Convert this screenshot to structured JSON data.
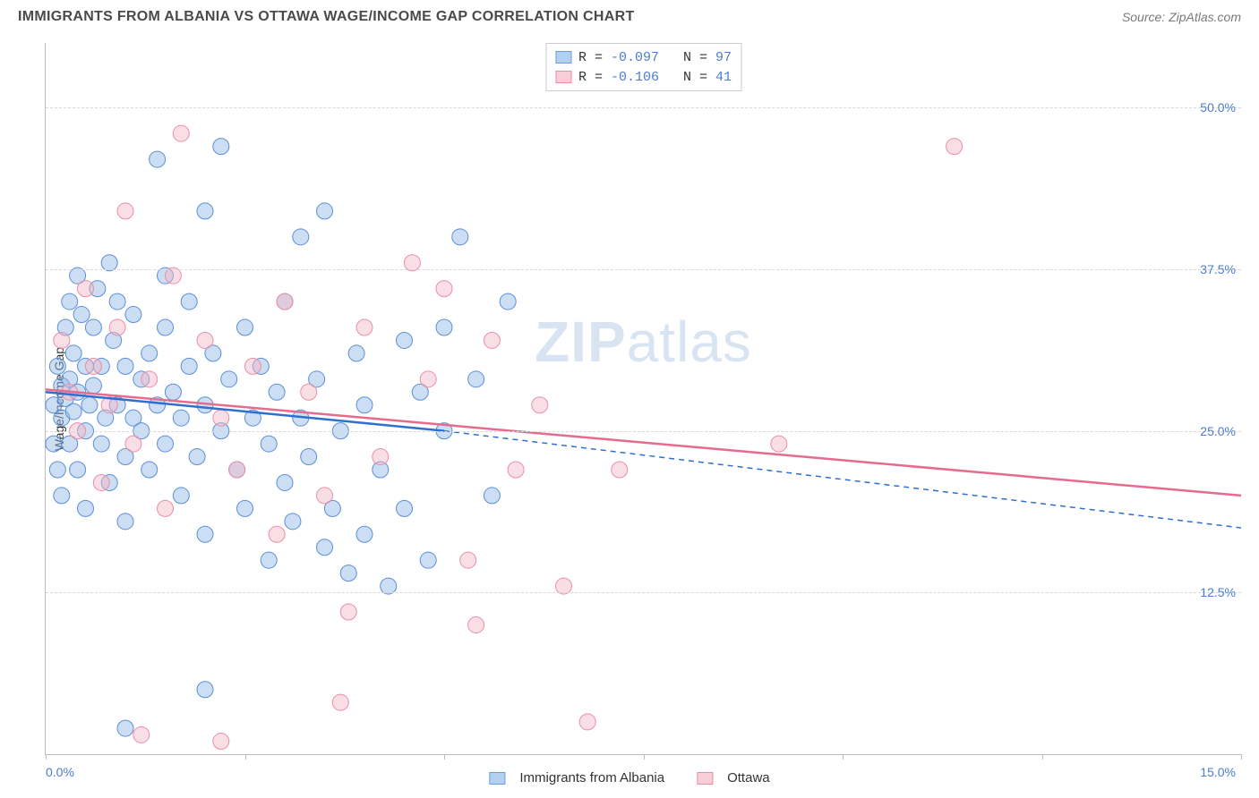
{
  "title": "IMMIGRANTS FROM ALBANIA VS OTTAWA WAGE/INCOME GAP CORRELATION CHART",
  "source": "Source: ZipAtlas.com",
  "ylabel": "Wage/Income Gap",
  "watermark": {
    "bold": "ZIP",
    "rest": "atlas"
  },
  "chart": {
    "type": "scatter",
    "xlim": [
      0,
      15
    ],
    "ylim": [
      0,
      55
    ],
    "x_ticks": [
      0,
      2.5,
      5,
      7.5,
      10,
      12.5,
      15
    ],
    "x_tick_labels": {
      "left": "0.0%",
      "right": "15.0%"
    },
    "y_gridlines": [
      12.5,
      25,
      37.5,
      50
    ],
    "y_tick_labels": [
      "12.5%",
      "25.0%",
      "37.5%",
      "50.0%"
    ],
    "grid_color": "#d8d8d8",
    "axis_color": "#bcbcbc",
    "background_color": "#ffffff",
    "tick_label_color": "#4b7bd6",
    "marker_radius": 9,
    "marker_opacity": 0.45,
    "series": [
      {
        "name": "Immigrants from Albania",
        "color": "#8fb6e5",
        "stroke": "#5c8fd6",
        "line_color": "#2f6fd0",
        "R": "-0.097",
        "N": "97",
        "trend": {
          "x1": 0,
          "y1": 28.0,
          "x2": 5.0,
          "y2": 25.0,
          "dash_to_x": 15.0,
          "dash_to_y": 17.5
        },
        "points": [
          [
            0.1,
            27
          ],
          [
            0.1,
            24
          ],
          [
            0.15,
            30
          ],
          [
            0.15,
            22
          ],
          [
            0.2,
            28.5
          ],
          [
            0.2,
            26
          ],
          [
            0.2,
            20
          ],
          [
            0.25,
            33
          ],
          [
            0.25,
            27.5
          ],
          [
            0.3,
            35
          ],
          [
            0.3,
            29
          ],
          [
            0.3,
            24
          ],
          [
            0.35,
            31
          ],
          [
            0.35,
            26.5
          ],
          [
            0.4,
            37
          ],
          [
            0.4,
            28
          ],
          [
            0.4,
            22
          ],
          [
            0.45,
            34
          ],
          [
            0.5,
            30
          ],
          [
            0.5,
            25
          ],
          [
            0.5,
            19
          ],
          [
            0.55,
            27
          ],
          [
            0.6,
            33
          ],
          [
            0.6,
            28.5
          ],
          [
            0.65,
            36
          ],
          [
            0.7,
            30
          ],
          [
            0.7,
            24
          ],
          [
            0.75,
            26
          ],
          [
            0.8,
            38
          ],
          [
            0.8,
            21
          ],
          [
            0.85,
            32
          ],
          [
            0.9,
            27
          ],
          [
            0.9,
            35
          ],
          [
            1.0,
            30
          ],
          [
            1.0,
            23
          ],
          [
            1.0,
            18
          ],
          [
            1.1,
            34
          ],
          [
            1.1,
            26
          ],
          [
            1.2,
            29
          ],
          [
            1.2,
            25
          ],
          [
            1.3,
            31
          ],
          [
            1.3,
            22
          ],
          [
            1.4,
            27
          ],
          [
            1.5,
            33
          ],
          [
            1.5,
            24
          ],
          [
            1.5,
            37
          ],
          [
            1.6,
            28
          ],
          [
            1.7,
            26
          ],
          [
            1.7,
            20
          ],
          [
            1.8,
            30
          ],
          [
            1.8,
            35
          ],
          [
            1.9,
            23
          ],
          [
            2.0,
            42
          ],
          [
            2.0,
            27
          ],
          [
            2.0,
            17
          ],
          [
            2.1,
            31
          ],
          [
            2.2,
            25
          ],
          [
            2.2,
            47
          ],
          [
            2.3,
            29
          ],
          [
            2.4,
            22
          ],
          [
            2.5,
            33
          ],
          [
            2.5,
            19
          ],
          [
            2.6,
            26
          ],
          [
            2.7,
            30
          ],
          [
            2.8,
            24
          ],
          [
            2.8,
            15
          ],
          [
            2.9,
            28
          ],
          [
            3.0,
            21
          ],
          [
            3.0,
            35
          ],
          [
            3.1,
            18
          ],
          [
            3.2,
            40
          ],
          [
            3.2,
            26
          ],
          [
            3.3,
            23
          ],
          [
            3.4,
            29
          ],
          [
            3.5,
            16
          ],
          [
            3.5,
            42
          ],
          [
            3.6,
            19
          ],
          [
            3.7,
            25
          ],
          [
            3.8,
            14
          ],
          [
            3.9,
            31
          ],
          [
            4.0,
            17
          ],
          [
            4.0,
            27
          ],
          [
            4.2,
            22
          ],
          [
            4.3,
            13
          ],
          [
            4.5,
            32
          ],
          [
            4.5,
            19
          ],
          [
            4.7,
            28
          ],
          [
            4.8,
            15
          ],
          [
            5.0,
            33
          ],
          [
            5.0,
            25
          ],
          [
            5.2,
            40
          ],
          [
            5.4,
            29
          ],
          [
            5.6,
            20
          ],
          [
            5.8,
            35
          ],
          [
            1.0,
            2
          ],
          [
            2.0,
            5
          ],
          [
            1.4,
            46
          ]
        ]
      },
      {
        "name": "Ottawa",
        "color": "#f4b6c5",
        "stroke": "#e98fa8",
        "line_color": "#e76b8f",
        "R": "-0.106",
        "N": "41",
        "trend": {
          "x1": 0,
          "y1": 28.2,
          "x2": 15.0,
          "y2": 20.0
        },
        "points": [
          [
            0.2,
            32
          ],
          [
            0.3,
            28
          ],
          [
            0.4,
            25
          ],
          [
            0.5,
            36
          ],
          [
            0.6,
            30
          ],
          [
            0.7,
            21
          ],
          [
            0.8,
            27
          ],
          [
            0.9,
            33
          ],
          [
            1.0,
            42
          ],
          [
            1.1,
            24
          ],
          [
            1.3,
            29
          ],
          [
            1.5,
            19
          ],
          [
            1.6,
            37
          ],
          [
            1.7,
            48
          ],
          [
            2.0,
            32
          ],
          [
            2.2,
            26
          ],
          [
            2.4,
            22
          ],
          [
            2.6,
            30
          ],
          [
            2.9,
            17
          ],
          [
            3.0,
            35
          ],
          [
            3.3,
            28
          ],
          [
            3.5,
            20
          ],
          [
            3.8,
            11
          ],
          [
            4.0,
            33
          ],
          [
            4.2,
            23
          ],
          [
            4.6,
            38
          ],
          [
            4.8,
            29
          ],
          [
            5.0,
            36
          ],
          [
            5.3,
            15
          ],
          [
            5.6,
            32
          ],
          [
            5.9,
            22
          ],
          [
            6.2,
            27
          ],
          [
            6.5,
            13
          ],
          [
            6.8,
            2.5
          ],
          [
            7.2,
            22
          ],
          [
            9.2,
            24
          ],
          [
            11.4,
            47
          ],
          [
            3.7,
            4
          ],
          [
            5.4,
            10
          ],
          [
            1.2,
            1.5
          ],
          [
            2.2,
            1
          ]
        ]
      }
    ]
  },
  "legend_top": [
    {
      "swatch_fill": "#b4d0f0",
      "swatch_border": "#6a9fe0",
      "r_label": "R = ",
      "r_value": "-0.097",
      "n_label": "   N = ",
      "n_value": "97"
    },
    {
      "swatch_fill": "#f7cdd8",
      "swatch_border": "#e98fa8",
      "r_label": "R = ",
      "r_value": "-0.106",
      "n_label": "   N = ",
      "n_value": "41"
    }
  ],
  "legend_bottom": [
    {
      "swatch_fill": "#b4d0f0",
      "swatch_border": "#6a9fe0",
      "label": "Immigrants from Albania"
    },
    {
      "swatch_fill": "#f7cdd8",
      "swatch_border": "#e98fa8",
      "label": "Ottawa"
    }
  ]
}
